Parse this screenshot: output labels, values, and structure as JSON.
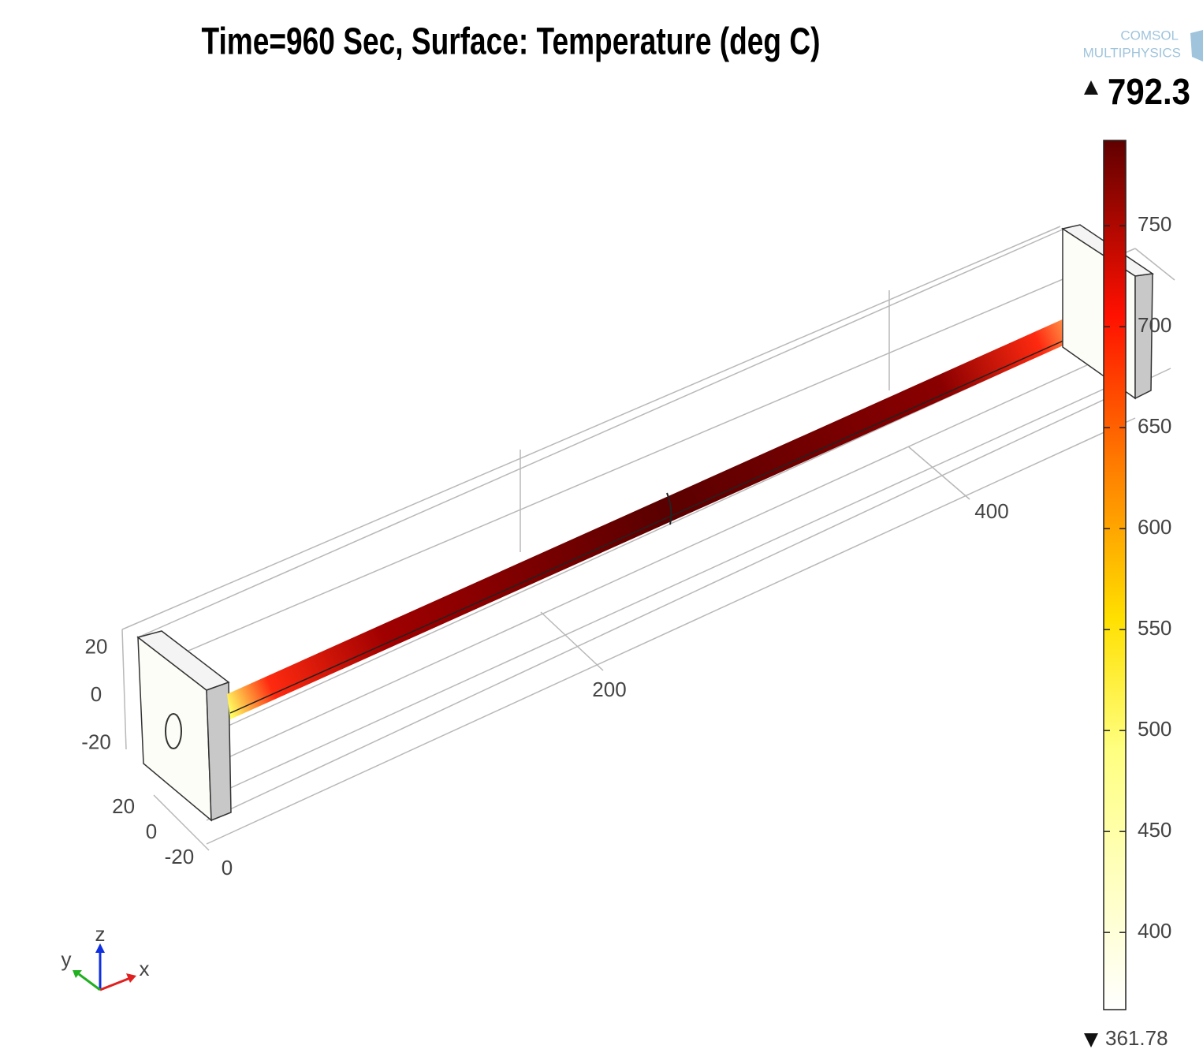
{
  "title": "Time=960 Sec, Surface: Temperature (deg C)",
  "logo": [
    "COMSOL",
    "MULTIPHYSICS"
  ],
  "colorbar": {
    "max": 792.3,
    "min": 361.78,
    "ticks": [
      400,
      450,
      500,
      550,
      600,
      650,
      700,
      750
    ]
  },
  "axes": {
    "x_ticks": [
      0,
      200,
      400
    ],
    "y_ticks": [
      20,
      0,
      -20
    ],
    "z_ticks": [
      20,
      0,
      -20
    ]
  },
  "triad": {
    "x": "x",
    "y": "y",
    "z": "z"
  }
}
